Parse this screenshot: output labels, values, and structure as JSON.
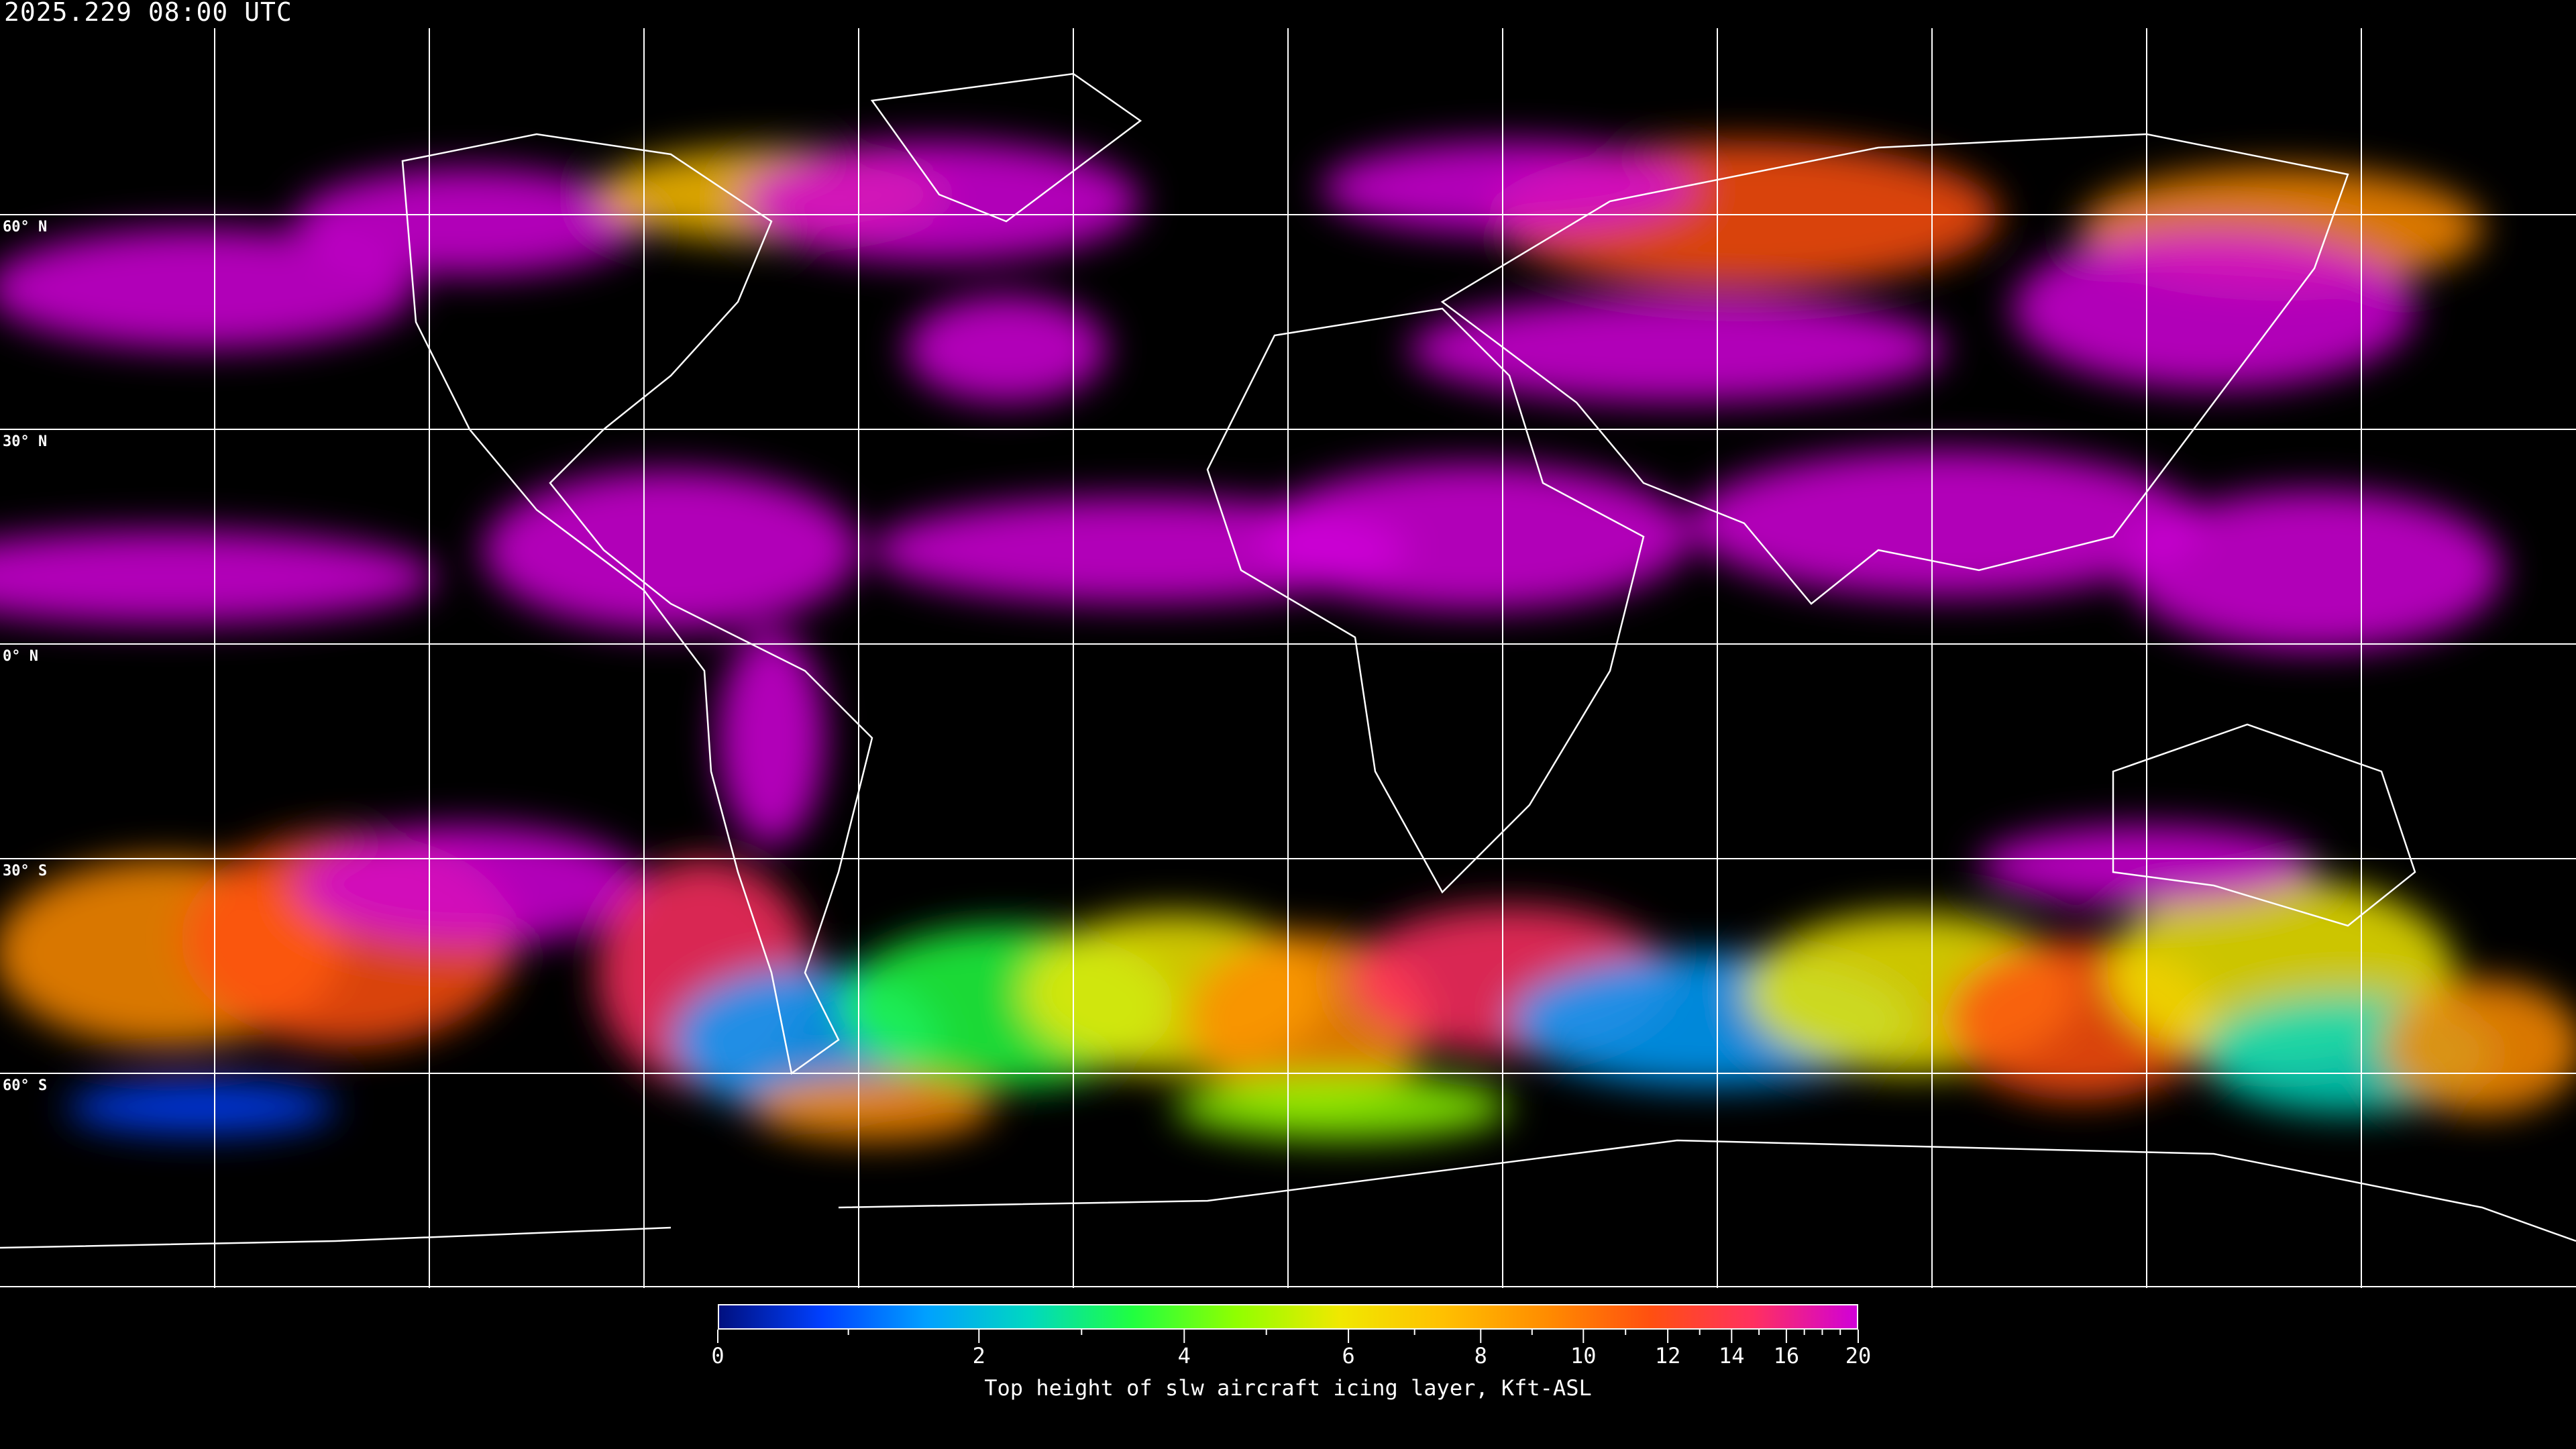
{
  "timestamp": "2025.229 08:00 UTC",
  "latitude_labels": [
    "60° N",
    "30° N",
    "0° N",
    "30° S",
    "60° S"
  ],
  "chart_data": {
    "type": "heatmap",
    "title": "2025.229 08:00 UTC",
    "grid": true,
    "colorbar": {
      "label": "Top height of slw aircraft icing layer, Kft-ASL",
      "range": [
        0,
        20
      ],
      "major_ticks": [
        0,
        2,
        4,
        6,
        8,
        10,
        12,
        14,
        16,
        20
      ],
      "major_tick_labels": [
        "0",
        "2",
        "4",
        "6",
        "8",
        "10",
        "12",
        "14",
        "16",
        "20"
      ],
      "minor_ticks": [
        1,
        3,
        5,
        7,
        9,
        11,
        13,
        15,
        17,
        18,
        19
      ],
      "colors": [
        "#001080",
        "#0040ff",
        "#00a0ff",
        "#00d8c0",
        "#20ff40",
        "#90ff00",
        "#f0e800",
        "#ffc000",
        "#ff8c00",
        "#ff5010",
        "#ff3060",
        "#d000d8"
      ]
    }
  }
}
